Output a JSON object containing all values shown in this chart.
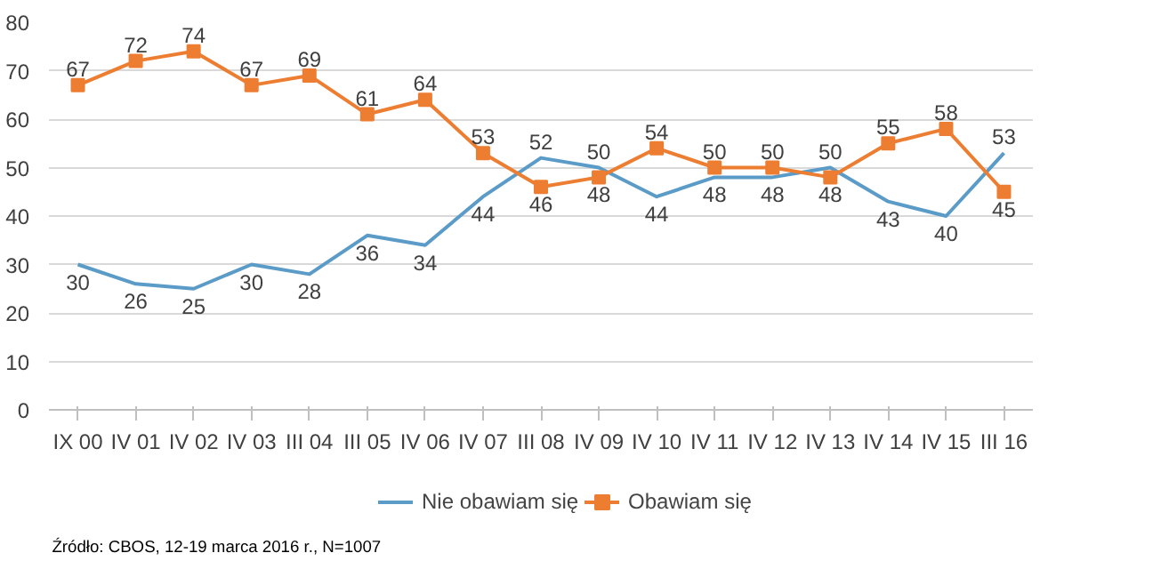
{
  "chart_data": {
    "type": "line",
    "categories": [
      "IX 00",
      "IV 01",
      "IV 02",
      "IV 03",
      "III 04",
      "III 05",
      "IV 06",
      "IV 07",
      "III 08",
      "IV 09",
      "IV 10",
      "IV 11",
      "IV 12",
      "IV 13",
      "IV 14",
      "IV 15",
      "III 16"
    ],
    "series": [
      {
        "name": "Nie obawiam się",
        "color": "#5b9bc8",
        "marker": "none",
        "values": [
          30,
          26,
          25,
          30,
          28,
          36,
          34,
          44,
          52,
          50,
          44,
          48,
          48,
          50,
          43,
          40,
          53
        ]
      },
      {
        "name": "Obawiam się",
        "color": "#ed7d31",
        "marker": "square",
        "values": [
          67,
          72,
          74,
          67,
          69,
          61,
          64,
          53,
          46,
          48,
          54,
          50,
          50,
          48,
          55,
          58,
          45
        ]
      }
    ],
    "ylim": [
      0,
      80
    ],
    "yticks": [
      0,
      10,
      20,
      30,
      40,
      50,
      60,
      70,
      80
    ],
    "grid": "y",
    "legend": "bottom",
    "data_labels": true,
    "line_style": "solid",
    "annotations": [
      "Źródło: CBOS, 12-19 marca 2016 r., N=1007"
    ]
  }
}
